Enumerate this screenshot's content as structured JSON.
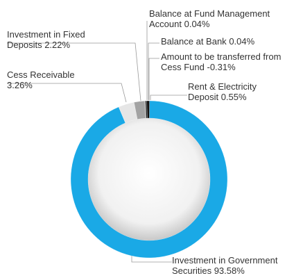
{
  "chart_data": {
    "type": "donut",
    "categories": [
      "Investment in Government Securities",
      "Cess Receivable",
      "Investment in Fixed Deposits",
      "Balance at Fund Management Account",
      "Balance at Bank",
      "Amount to be transferred from Cess Fund",
      "Rent & Electricity Deposit"
    ],
    "values": [
      93.58,
      3.26,
      2.22,
      0.04,
      0.04,
      -0.31,
      0.55
    ],
    "value_labels": [
      "93.58%",
      "3.26%",
      "2.22%",
      "0.04%",
      "0.04%",
      "-0.31%",
      "0.55%"
    ],
    "colors": [
      "#1aa9e6",
      "#e6e6e6",
      "#a3a3a3",
      "#666666",
      "#444444",
      "#222222",
      "#111111"
    ]
  }
}
